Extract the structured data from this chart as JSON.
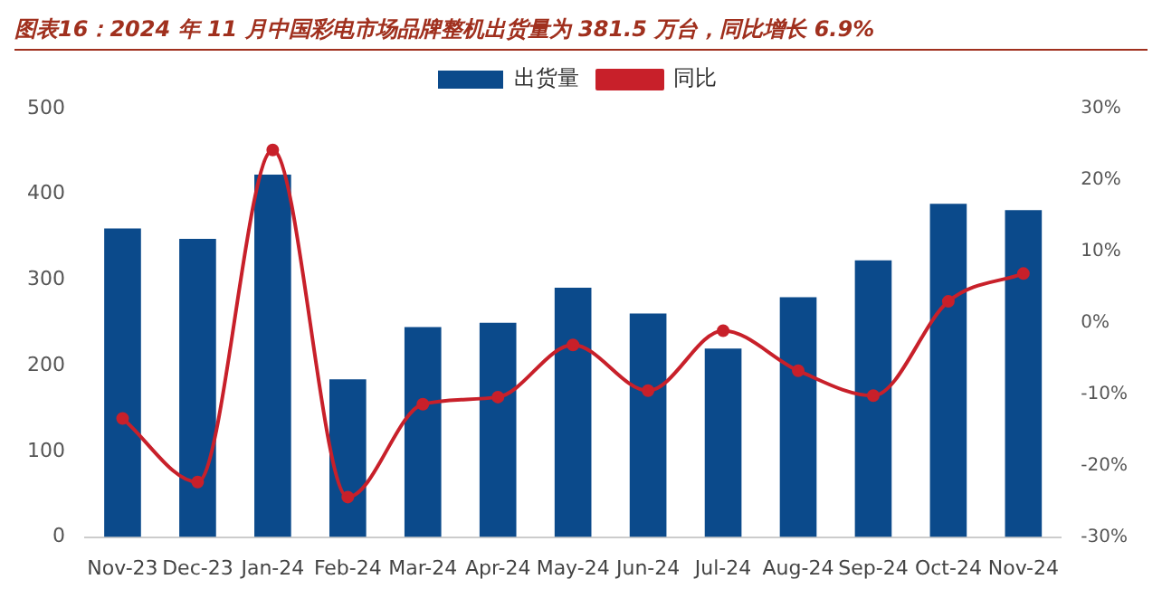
{
  "chart_data": {
    "type": "bar",
    "title": "图表16：2024 年 11 月中国彩电市场品牌整机出货量为 381.5 万台，同比增长 6.9%",
    "categories": [
      "Nov-23",
      "Dec-23",
      "Jan-24",
      "Feb-24",
      "Mar-24",
      "Apr-24",
      "May-24",
      "Jun-24",
      "Jul-24",
      "Aug-24",
      "Sep-24",
      "Oct-24",
      "Nov-24"
    ],
    "series": [
      {
        "name": "出货量",
        "color": "#0b4a8b",
        "values": [
          360,
          348,
          423,
          184,
          245,
          250,
          291,
          261,
          220,
          280,
          323,
          389,
          381.5
        ]
      },
      {
        "name": "同比",
        "type": "line",
        "axis": "y2",
        "color": "#c8202a",
        "marker": "circle",
        "values": [
          -13.4,
          -22.3,
          24.2,
          -24.4,
          -11.4,
          -10.4,
          -3.1,
          -9.5,
          -1.1,
          -6.7,
          -10.2,
          3.0,
          6.9
        ]
      }
    ],
    "ylim": [
      0,
      500
    ],
    "yticks": [
      0,
      100,
      200,
      300,
      400,
      500
    ],
    "y2lim": [
      -30,
      30
    ],
    "y2ticks": [
      {
        "value": -30,
        "label": "-30%"
      },
      {
        "value": -20,
        "label": "-20%"
      },
      {
        "value": -10,
        "label": "-10%"
      },
      {
        "value": 0,
        "label": "0%"
      },
      {
        "value": 10,
        "label": "10%"
      },
      {
        "value": 20,
        "label": "20%"
      },
      {
        "value": 30,
        "label": "30%"
      }
    ],
    "grid": false,
    "legend": "top"
  }
}
